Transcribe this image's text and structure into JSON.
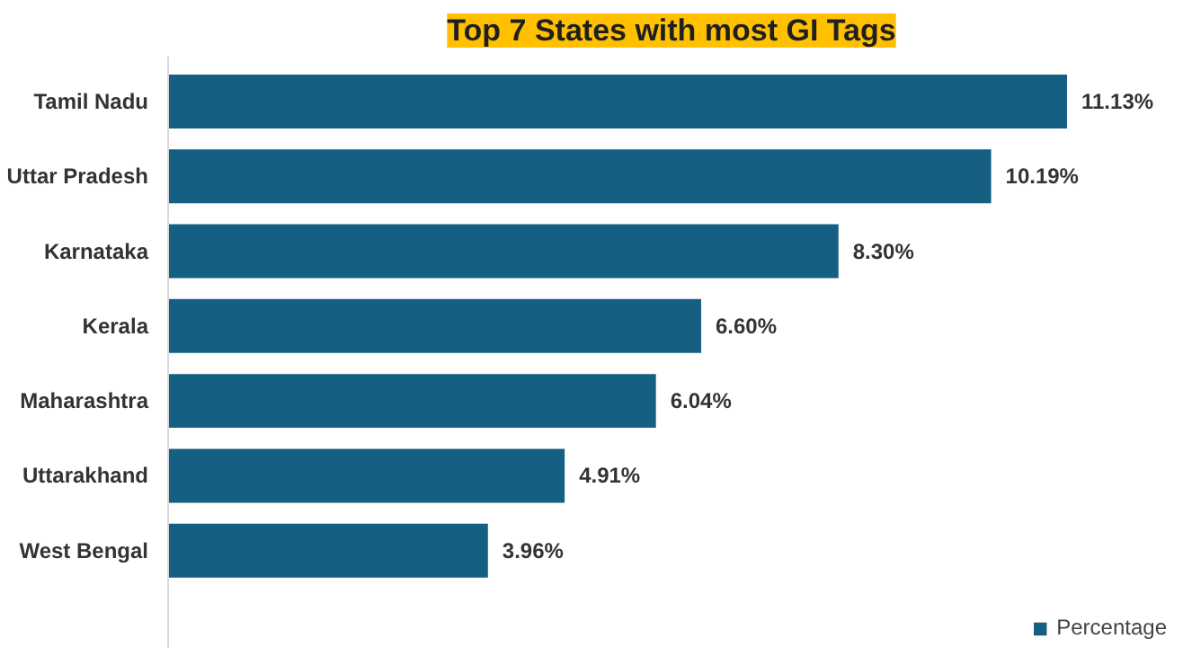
{
  "chart_data": {
    "type": "bar",
    "orientation": "horizontal",
    "title": "Top 7 States with most GI Tags",
    "categories": [
      "Tamil Nadu",
      "Uttar Pradesh",
      "Karnataka",
      "Kerala",
      "Maharashtra",
      "Uttarakhand",
      "West Bengal"
    ],
    "series": [
      {
        "name": "Percentage",
        "color": "#156082",
        "values": [
          11.13,
          10.19,
          8.3,
          6.6,
          6.04,
          4.91,
          3.96
        ],
        "value_labels": [
          "11.13%",
          "10.19%",
          "8.30%",
          "6.60%",
          "6.04%",
          "4.91%",
          "3.96%"
        ]
      }
    ],
    "legend": "bottom right"
  }
}
